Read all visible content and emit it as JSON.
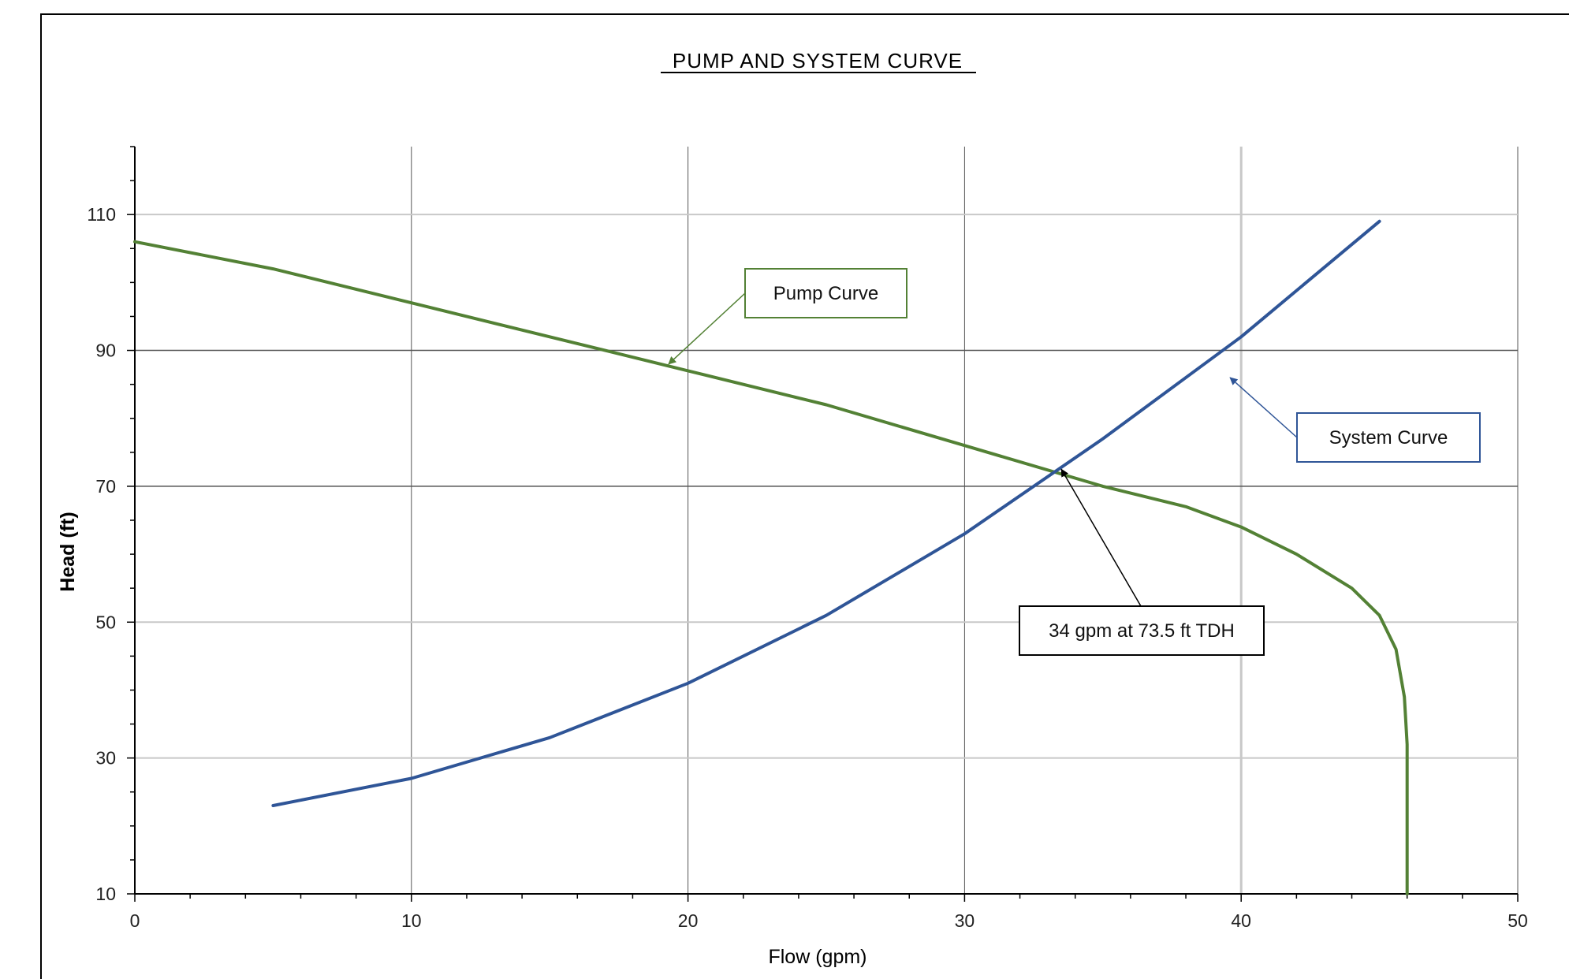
{
  "chart_data": {
    "type": "line",
    "title": "PUMP AND SYSTEM CURVE",
    "xlabel": "Flow (gpm)",
    "ylabel": "Head (ft)",
    "xlim": [
      0,
      50
    ],
    "ylim": [
      10,
      120
    ],
    "x_ticks": [
      0,
      10,
      20,
      30,
      40,
      50
    ],
    "y_ticks": [
      10,
      30,
      50,
      70,
      90,
      110
    ],
    "grid": true,
    "series": [
      {
        "name": "Pump Curve",
        "color": "#538135",
        "x": [
          0,
          5,
          10,
          15,
          20,
          25,
          30,
          35,
          38,
          40,
          42,
          44,
          45,
          45.6,
          45.9,
          46.0,
          46.0,
          46.0
        ],
        "y": [
          106,
          102,
          97,
          92,
          87,
          82,
          76,
          70,
          67,
          64,
          60,
          55,
          51,
          46,
          39,
          32,
          20,
          10
        ]
      },
      {
        "name": "System Curve",
        "color": "#2F5597",
        "x": [
          5,
          10,
          15,
          20,
          25,
          30,
          35,
          40,
          45
        ],
        "y": [
          23,
          27,
          33,
          41,
          51,
          63,
          77,
          92,
          109
        ]
      }
    ],
    "annotations": [
      {
        "text": "Pump Curve",
        "color": "#538135",
        "border": "#538135",
        "target_x": 19.3,
        "target_y": 88
      },
      {
        "text": "System Curve",
        "color": "#2F5597",
        "border": "#2F5597",
        "target_x": 39.6,
        "target_y": 86
      },
      {
        "text": "34 gpm at 73.5 ft TDH",
        "color": "#000000",
        "border": "#000000",
        "target_x": 33.5,
        "target_y": 72.5
      }
    ]
  }
}
